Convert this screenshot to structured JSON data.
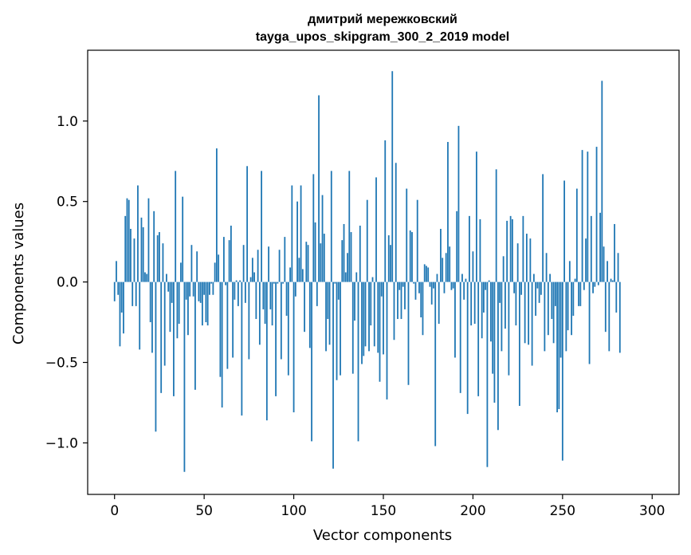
{
  "chart_data": {
    "type": "bar",
    "title": "дмитрий мережковский",
    "subtitle": "tayga_upos_skipgram_300_2_2019 model",
    "xlabel": "Vector components",
    "ylabel": "Components values",
    "xlim": [
      -15,
      315
    ],
    "ylim": [
      -1.32,
      1.44
    ],
    "xticks": [
      0,
      50,
      100,
      150,
      200,
      250,
      300
    ],
    "xtick_labels": [
      "0",
      "50",
      "100",
      "150",
      "200",
      "250",
      "300"
    ],
    "yticks": [
      -1.0,
      -0.5,
      0.0,
      0.5,
      1.0
    ],
    "ytick_labels": [
      "−1.0",
      "−0.5",
      "0.0",
      "0.5",
      "1.0"
    ],
    "grid": false,
    "color": "#1f77b4",
    "values": [
      -0.12,
      0.13,
      -0.08,
      -0.4,
      -0.19,
      -0.32,
      0.41,
      0.52,
      0.51,
      0.33,
      -0.15,
      0.27,
      -0.15,
      0.6,
      -0.42,
      0.4,
      0.34,
      0.06,
      0.05,
      0.52,
      -0.25,
      -0.44,
      0.44,
      -0.93,
      0.29,
      0.31,
      -0.69,
      0.24,
      -0.52,
      0.05,
      -0.06,
      -0.31,
      -0.13,
      -0.71,
      0.69,
      -0.35,
      -0.26,
      0.12,
      0.53,
      -1.18,
      -0.11,
      -0.33,
      -0.09,
      0.23,
      -0.09,
      -0.67,
      0.19,
      -0.12,
      -0.13,
      -0.27,
      -0.08,
      -0.25,
      -0.27,
      -0.08,
      -0.01,
      -0.08,
      0.12,
      0.83,
      0.17,
      -0.59,
      -0.78,
      0.28,
      -0.02,
      -0.54,
      0.26,
      0.35,
      -0.47,
      -0.11,
      0.01,
      -0.15,
      0.01,
      -0.83,
      0.23,
      -0.13,
      0.72,
      -0.48,
      0.03,
      0.15,
      0.06,
      -0.23,
      0.2,
      -0.39,
      0.69,
      -0.17,
      -0.26,
      -0.86,
      0.22,
      -0.17,
      -0.27,
      -0.01,
      -0.71,
      -0.01,
      0.2,
      -0.48,
      -0.01,
      0.28,
      -0.21,
      -0.58,
      0.09,
      0.6,
      -0.81,
      -0.09,
      0.5,
      0.15,
      0.6,
      0.08,
      -0.31,
      0.25,
      0.23,
      -0.41,
      -0.99,
      0.67,
      0.37,
      -0.15,
      1.16,
      0.24,
      0.54,
      0.3,
      -0.43,
      -0.23,
      -0.39,
      0.69,
      -1.16,
      -0.01,
      -0.61,
      -0.11,
      -0.58,
      0.26,
      0.36,
      0.06,
      0.18,
      0.69,
      0.31,
      -0.57,
      -0.24,
      0.06,
      -0.99,
      0.35,
      -0.51,
      -0.46,
      -0.4,
      0.51,
      -0.43,
      -0.27,
      0.03,
      -0.4,
      0.65,
      -0.44,
      -0.62,
      -0.09,
      -0.45,
      0.88,
      -0.73,
      0.29,
      0.23,
      1.31,
      -0.36,
      0.74,
      -0.23,
      -0.05,
      -0.23,
      -0.03,
      -0.17,
      0.58,
      -0.64,
      0.32,
      0.31,
      -0.01,
      -0.11,
      0.51,
      -0.07,
      -0.22,
      -0.33,
      0.11,
      0.1,
      0.09,
      -0.03,
      -0.14,
      -0.04,
      -1.02,
      0.05,
      -0.26,
      0.33,
      0.15,
      -0.07,
      0.18,
      0.87,
      0.22,
      -0.05,
      -0.04,
      -0.47,
      0.44,
      0.97,
      -0.69,
      0.05,
      -0.11,
      0.02,
      -0.82,
      0.41,
      -0.27,
      0.19,
      -0.26,
      0.81,
      -0.71,
      0.39,
      -0.35,
      -0.19,
      -0.05,
      -1.15,
      0.01,
      -0.37,
      -0.57,
      -0.75,
      0.7,
      -0.92,
      -0.13,
      -0.43,
      0.16,
      -0.29,
      0.38,
      -0.58,
      0.41,
      0.39,
      -0.07,
      -0.27,
      0.24,
      -0.77,
      -0.08,
      0.41,
      -0.38,
      0.3,
      -0.39,
      0.27,
      -0.52,
      0.05,
      -0.21,
      -0.04,
      -0.13,
      -0.08,
      0.67,
      -0.43,
      0.18,
      -0.33,
      0.05,
      -0.23,
      -0.38,
      -0.15,
      -0.81,
      -0.79,
      -0.47,
      -1.11,
      0.63,
      -0.43,
      -0.3,
      0.13,
      -0.33,
      -0.21,
      0.02,
      0.58,
      -0.15,
      -0.15,
      0.82,
      -0.05,
      0.27,
      0.81,
      -0.51,
      0.41,
      -0.07,
      -0.03,
      0.84,
      -0.02,
      0.43,
      1.25,
      0.22,
      -0.31,
      0.13,
      -0.43,
      0.02,
      0.01,
      0.36,
      -0.19,
      0.18,
      -0.44
    ]
  }
}
